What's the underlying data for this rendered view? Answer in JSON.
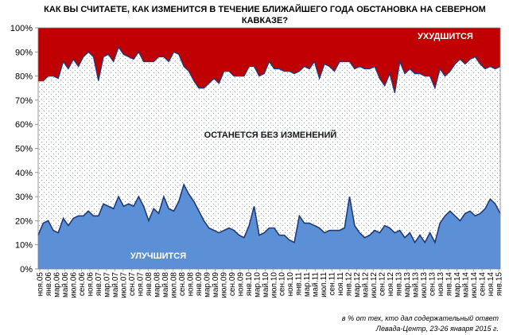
{
  "chart_data": {
    "type": "area",
    "title_line1": "КАК ВЫ СЧИТАЕТЕ, КАК ИЗМЕНИТСЯ В ТЕЧЕНИЕ БЛИЖАЙШЕГО ГОДА ОБСТАНОВКА НА СЕВЕРНОМ",
    "title_line2": "КАВКАЗЕ?",
    "stacked": true,
    "ylim": [
      0,
      100
    ],
    "yticks": [
      "0%",
      "10%",
      "20%",
      "30%",
      "40%",
      "50%",
      "60%",
      "70%",
      "80%",
      "90%",
      "100%"
    ],
    "grid": false,
    "x_tick_labels": [
      "ноя.05",
      "янв.06",
      "мар.06",
      "май.06",
      "июл.06",
      "сен.06",
      "ноя.06",
      "янв.07",
      "мар.07",
      "май.07",
      "июл.07",
      "сен.07",
      "ноя.07",
      "янв.08",
      "мар.08",
      "май.08",
      "июл.08",
      "сен.08",
      "ноя.08",
      "янв.09",
      "мар.09",
      "май.09",
      "июл.09",
      "сен.09",
      "ноя.09",
      "янв.10",
      "мар.10",
      "май.10",
      "июл.10",
      "сен.10",
      "ноя.10",
      "янв.11",
      "мар.11",
      "май.11",
      "июл.11",
      "сен.11",
      "ноя.11",
      "янв.12",
      "мар.12",
      "май.12",
      "июл.12",
      "сен.12",
      "ноя.12",
      "янв.13",
      "мар.13",
      "май.13",
      "июл.13",
      "сен.13",
      "ноя.13",
      "янв.14",
      "мар.14",
      "май.14",
      "июл.14",
      "сен.14",
      "ноя.14",
      "янв.15"
    ],
    "series": [
      {
        "name": "УЛУЧШИТСЯ",
        "color": "#5b8fd6",
        "line_color": "#1f3a7a",
        "values": [
          14,
          19,
          20,
          16,
          15,
          21,
          18,
          21,
          22,
          22,
          24,
          22,
          22,
          27,
          26,
          25,
          30,
          26,
          27,
          26,
          30,
          26,
          20,
          25,
          23,
          30,
          25,
          24,
          28,
          35,
          31,
          28,
          24,
          20,
          17,
          16,
          15,
          16,
          17,
          16,
          14,
          13,
          18,
          26,
          14,
          15,
          17,
          17,
          14,
          14,
          12,
          11,
          22,
          19,
          19,
          18,
          17,
          15,
          16,
          16,
          16,
          17,
          30,
          18,
          15,
          13,
          14,
          16,
          15,
          18,
          17,
          15,
          16,
          13,
          15,
          11,
          14,
          11,
          15,
          11,
          19,
          22,
          24,
          22,
          20,
          23,
          24,
          22,
          23,
          25,
          29,
          27,
          23
        ]
      },
      {
        "name": "ОСТАНЕТСЯ БЕЗ ИЗМЕНЕНИЙ",
        "color": "#ffffff",
        "values": [
          64,
          59,
          60,
          64,
          64,
          65,
          65,
          66,
          62,
          66,
          66,
          66,
          56,
          61,
          63,
          61,
          62,
          63,
          61,
          61,
          60,
          60,
          66,
          61,
          65,
          58,
          61,
          66,
          61,
          49,
          51,
          50,
          51,
          55,
          60,
          63,
          62,
          66,
          65,
          64,
          66,
          67,
          66,
          58,
          66,
          66,
          69,
          66,
          69,
          68,
          70,
          70,
          60,
          65,
          64,
          68,
          62,
          70,
          68,
          66,
          70,
          69,
          56,
          65,
          69,
          70,
          69,
          68,
          64,
          58,
          64,
          58,
          70,
          68,
          68,
          70,
          67,
          69,
          65,
          64,
          64,
          58,
          58,
          63,
          67,
          62,
          63,
          66,
          62,
          58,
          55,
          56,
          61
        ]
      },
      {
        "name": "УХУДШИТСЯ",
        "color": "#c00000",
        "values": [
          22,
          22,
          20,
          20,
          21,
          14,
          17,
          13,
          16,
          12,
          10,
          12,
          22,
          12,
          11,
          14,
          8,
          11,
          12,
          13,
          10,
          14,
          14,
          14,
          12,
          12,
          14,
          10,
          11,
          16,
          18,
          22,
          25,
          25,
          23,
          21,
          23,
          18,
          18,
          20,
          20,
          20,
          16,
          16,
          20,
          19,
          14,
          17,
          17,
          18,
          18,
          19,
          18,
          16,
          17,
          14,
          21,
          15,
          16,
          18,
          14,
          14,
          14,
          17,
          16,
          17,
          17,
          16,
          21,
          24,
          19,
          27,
          14,
          19,
          17,
          19,
          19,
          20,
          20,
          25,
          17,
          20,
          18,
          15,
          13,
          15,
          13,
          12,
          15,
          17,
          16,
          17,
          16
        ]
      }
    ],
    "labels": {
      "better": "УЛУЧШИТСЯ",
      "same": "ОСТАНЕТСЯ БЕЗ ИЗМЕНЕНИЙ",
      "worse": "УХУДШИТСЯ"
    },
    "note_line1": "в % от тех, кто дал содержательный ответ",
    "note_line2": "Левада-Центр, 23-26 января 2015 г."
  }
}
